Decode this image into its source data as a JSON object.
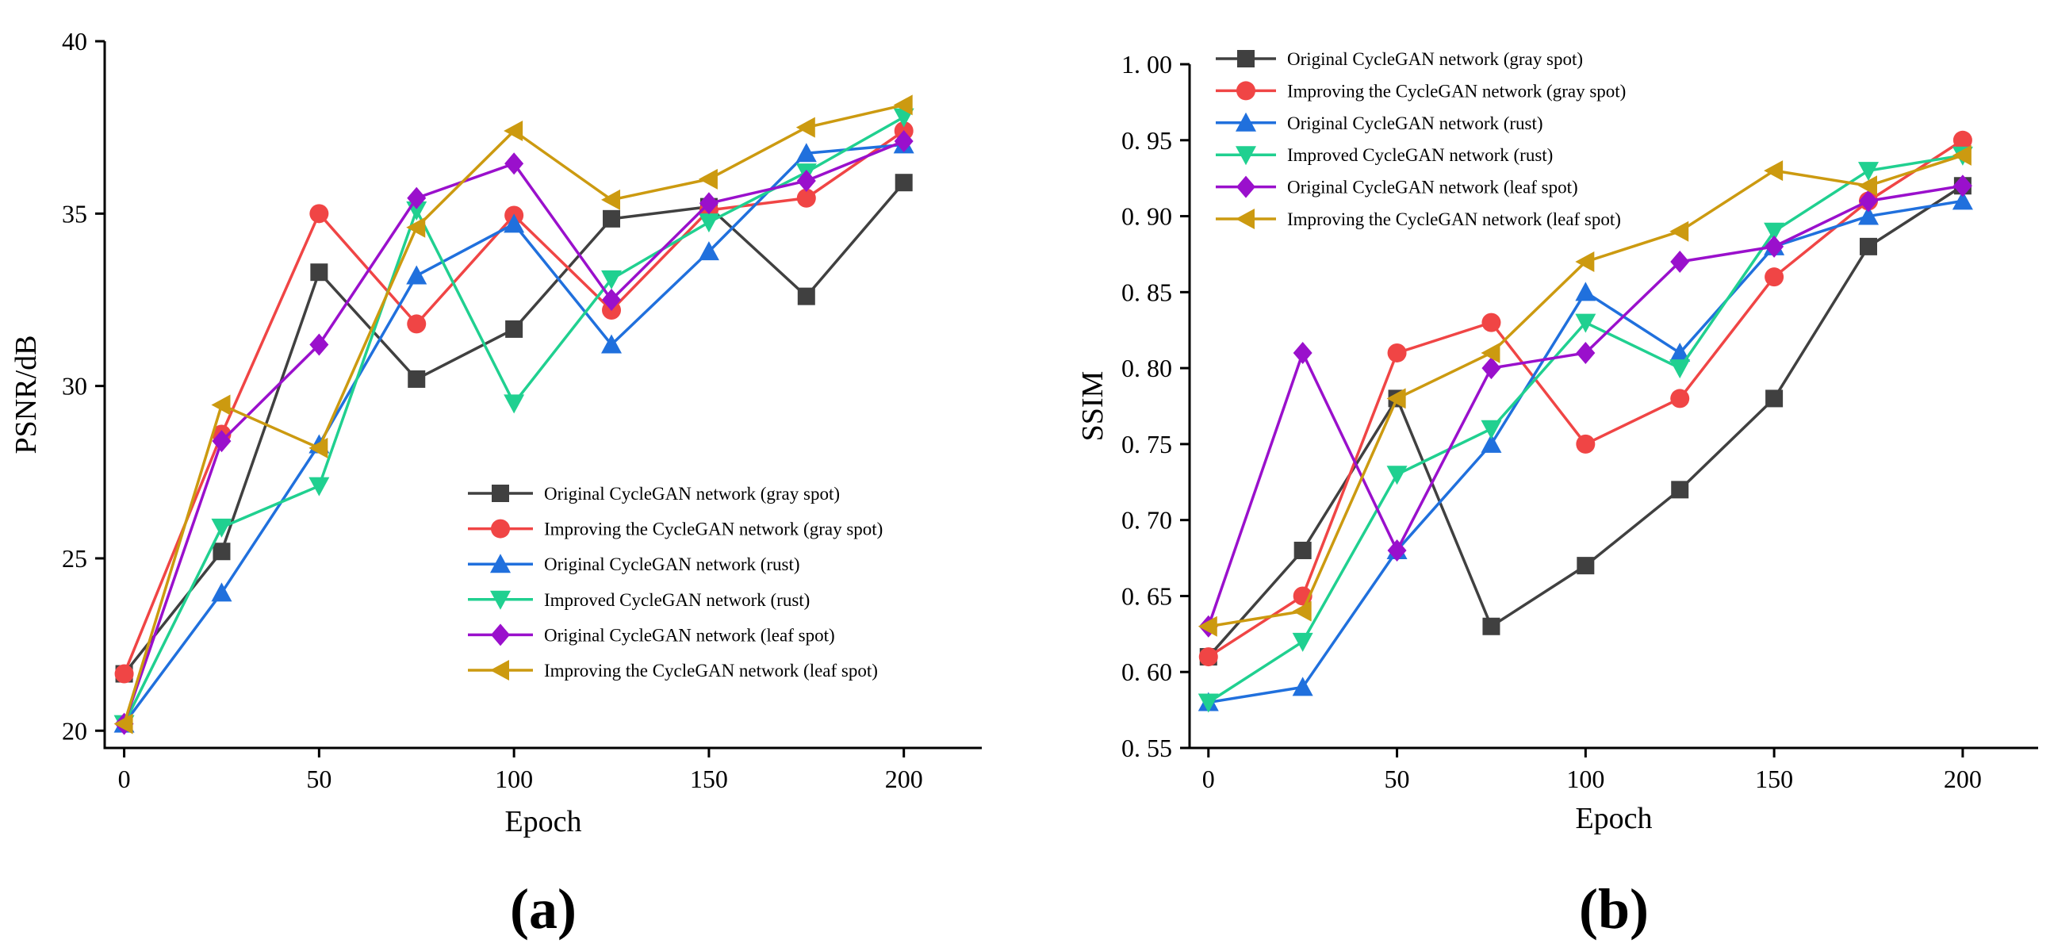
{
  "colors": {
    "gray": "#404040",
    "red": "#f04545",
    "blue": "#2070dd",
    "green": "#20d090",
    "purple": "#9a10cc",
    "gold": "#cc9a10"
  },
  "chart_data": [
    {
      "type": "line",
      "panel_label": "(a)",
      "title": "",
      "xlabel": "Epoch",
      "ylabel": "PSNR/dB",
      "xlim": [
        -5,
        220
      ],
      "ylim": [
        19.5,
        40
      ],
      "xticks": [
        0,
        50,
        100,
        150,
        200
      ],
      "yticks": [
        20,
        25,
        30,
        35,
        40
      ],
      "x": [
        0,
        25,
        50,
        75,
        100,
        125,
        150,
        175,
        200
      ],
      "legend_position": "lower-right",
      "series": [
        {
          "name": "Original CycleGAN network (gray spot)",
          "color_key": "gray",
          "marker": "square",
          "values": [
            21.65,
            25.2,
            33.3,
            30.2,
            31.65,
            34.85,
            35.2,
            32.6,
            35.9
          ]
        },
        {
          "name": "Improving the CycleGAN network (gray spot)",
          "color_key": "red",
          "marker": "circle",
          "values": [
            21.65,
            28.6,
            35.0,
            31.8,
            34.95,
            32.2,
            35.1,
            35.45,
            37.4
          ]
        },
        {
          "name": "Original CycleGAN network (rust)",
          "color_key": "blue",
          "marker": "triangle-up",
          "values": [
            20.2,
            24.0,
            28.3,
            33.2,
            34.7,
            31.2,
            33.9,
            36.75,
            37.0
          ]
        },
        {
          "name": "Improved CycleGAN network (rust)",
          "color_key": "green",
          "marker": "triangle-down",
          "values": [
            20.2,
            25.9,
            27.1,
            35.1,
            29.5,
            33.1,
            34.75,
            36.2,
            37.8
          ]
        },
        {
          "name": "Original CycleGAN network (leaf spot)",
          "color_key": "purple",
          "marker": "diamond",
          "values": [
            20.2,
            28.4,
            31.2,
            35.45,
            36.45,
            32.5,
            35.3,
            35.95,
            37.1
          ]
        },
        {
          "name": "Improving the CycleGAN network (leaf spot)",
          "color_key": "gold",
          "marker": "triangle-left",
          "values": [
            20.2,
            29.45,
            28.2,
            34.6,
            37.4,
            35.4,
            36.0,
            37.5,
            38.15
          ]
        }
      ]
    },
    {
      "type": "line",
      "panel_label": "(b)",
      "title": "",
      "xlabel": "Epoch",
      "ylabel": "SSIM",
      "xlim": [
        -5,
        220
      ],
      "ylim": [
        0.55,
        1.0
      ],
      "xticks": [
        0,
        50,
        100,
        150,
        200
      ],
      "yticks": [
        0.55,
        0.6,
        0.65,
        0.7,
        0.75,
        0.8,
        0.85,
        0.9,
        0.95,
        1.0
      ],
      "ytick_labels": [
        "0. 55",
        "0. 60",
        "0. 65",
        "0. 70",
        "0. 75",
        "0. 80",
        "0. 85",
        "0. 90",
        "0. 95",
        "1. 00"
      ],
      "x": [
        0,
        25,
        50,
        75,
        100,
        125,
        150,
        175,
        200
      ],
      "legend_position": "top-left",
      "series": [
        {
          "name": "Original CycleGAN network (gray spot)",
          "color_key": "gray",
          "marker": "square",
          "values": [
            0.61,
            0.68,
            0.78,
            0.63,
            0.67,
            0.72,
            0.78,
            0.88,
            0.92
          ]
        },
        {
          "name": "Improving the CycleGAN network (gray spot)",
          "color_key": "red",
          "marker": "circle",
          "values": [
            0.61,
            0.65,
            0.81,
            0.83,
            0.75,
            0.78,
            0.86,
            0.91,
            0.95
          ]
        },
        {
          "name": "Original CycleGAN network (rust)",
          "color_key": "blue",
          "marker": "triangle-up",
          "values": [
            0.58,
            0.59,
            0.68,
            0.75,
            0.85,
            0.81,
            0.88,
            0.9,
            0.91
          ]
        },
        {
          "name": "Improved CycleGAN network (rust)",
          "color_key": "green",
          "marker": "triangle-down",
          "values": [
            0.58,
            0.62,
            0.73,
            0.76,
            0.83,
            0.8,
            0.89,
            0.93,
            0.94
          ]
        },
        {
          "name": "Original CycleGAN network (leaf spot)",
          "color_key": "purple",
          "marker": "diamond",
          "values": [
            0.63,
            0.81,
            0.68,
            0.8,
            0.81,
            0.87,
            0.88,
            0.91,
            0.92
          ]
        },
        {
          "name": "Improving the CycleGAN network (leaf spot)",
          "color_key": "gold",
          "marker": "triangle-left",
          "values": [
            0.63,
            0.64,
            0.78,
            0.81,
            0.87,
            0.89,
            0.93,
            0.92,
            0.94
          ]
        }
      ]
    }
  ]
}
